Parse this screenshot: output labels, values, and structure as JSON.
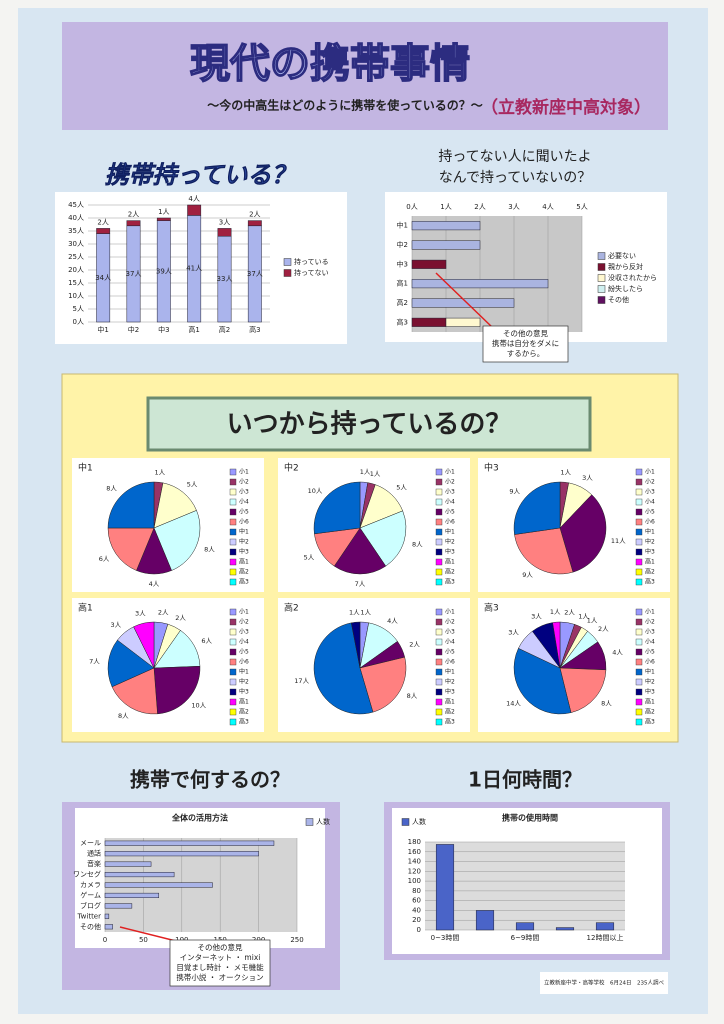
{
  "header": {
    "title": "現代の携帯事情",
    "subtitle": "～今の中高生はどのように携帯を使っているの？～",
    "target": "（立教新座中高対象）"
  },
  "sections": {
    "pies_title": "いつから持っているの？"
  },
  "footer": "立教新座中学・高等学校　6月24日　235人調べ",
  "chart_data": [
    {
      "type": "bar",
      "stacked": true,
      "title": "携帯持っている？",
      "categories": [
        "中1",
        "中2",
        "中3",
        "高1",
        "高2",
        "高3"
      ],
      "series": [
        {
          "name": "持っている",
          "color": "#aab4ec",
          "values": [
            34,
            37,
            39,
            41,
            33,
            37
          ],
          "value_labels": [
            "34人",
            "37人",
            "39人",
            "41人",
            "33人",
            "37人"
          ]
        },
        {
          "name": "持ってない",
          "color": "#a02040",
          "values": [
            2,
            2,
            1,
            4,
            3,
            2
          ],
          "value_labels": [
            "2人",
            "2人",
            "1人",
            "4人",
            "3人",
            "2人"
          ]
        }
      ],
      "ylim": [
        0,
        45
      ],
      "yticks": [
        {
          "value": 0,
          "label": "0人"
        },
        {
          "value": 5,
          "label": "5人"
        },
        {
          "value": 10,
          "label": "10人"
        },
        {
          "value": 15,
          "label": "15人"
        },
        {
          "value": 20,
          "label": "20人"
        },
        {
          "value": 25,
          "label": "25人"
        },
        {
          "value": 30,
          "label": "30人"
        },
        {
          "value": 35,
          "label": "35人"
        },
        {
          "value": 40,
          "label": "40人"
        },
        {
          "value": 45,
          "label": "45人"
        }
      ],
      "grid": true
    },
    {
      "type": "barh",
      "stacked": true,
      "title": [
        "持ってない人に聞いたよ",
        "なんで持っていないの？"
      ],
      "categories": [
        "中1",
        "中2",
        "中3",
        "高1",
        "高2",
        "高3"
      ],
      "series": [
        {
          "name": "必要ない",
          "color": "#aab4e0",
          "values": [
            2,
            2,
            0,
            4,
            3,
            0
          ]
        },
        {
          "name": "親から反対",
          "color": "#7a1030",
          "values": [
            0,
            0,
            1,
            0,
            0,
            1
          ]
        },
        {
          "name": "没収されたから",
          "color": "#fff8d0",
          "values": [
            0,
            0,
            0,
            0,
            0,
            1
          ]
        },
        {
          "name": "紛失したら",
          "color": "#d0f0f0",
          "values": [
            0,
            0,
            0,
            0,
            0,
            0
          ]
        },
        {
          "name": "その他",
          "color": "#601060",
          "values": [
            0,
            0,
            0,
            0,
            0,
            0
          ]
        }
      ],
      "xlim": [
        0,
        5
      ],
      "xticks": [
        {
          "value": 0,
          "label": "0人"
        },
        {
          "value": 1,
          "label": "1人"
        },
        {
          "value": 2,
          "label": "2人"
        },
        {
          "value": 3,
          "label": "3人"
        },
        {
          "value": 4,
          "label": "4人"
        },
        {
          "value": 5,
          "label": "5人"
        }
      ],
      "grid": true,
      "annotation": [
        "その他の意見",
        "携帯は自分をダメに",
        "するから。"
      ]
    },
    {
      "type": "pie",
      "title": "中1",
      "categories": [
        "小1",
        "小2",
        "小3",
        "小4",
        "小5",
        "小6",
        "中1",
        "中2",
        "中3",
        "高1",
        "高2",
        "高3"
      ],
      "colors": [
        "#9999ff",
        "#993366",
        "#ffffcc",
        "#ccffff",
        "#660066",
        "#ff8080",
        "#0066cc",
        "#ccccff",
        "#000080",
        "#ff00ff",
        "#ffff00",
        "#00ffff"
      ],
      "values": [
        0,
        1,
        5,
        8,
        4,
        6,
        8,
        0,
        0,
        0,
        0,
        0
      ],
      "value_labels": [
        null,
        "1人",
        "5人",
        "8人",
        "4人",
        "6人",
        "8人",
        null,
        null,
        null,
        null,
        null
      ]
    },
    {
      "type": "pie",
      "title": "中2",
      "categories": [
        "小1",
        "小2",
        "小3",
        "小4",
        "小5",
        "小6",
        "中1",
        "中2",
        "中3",
        "高1",
        "高2",
        "高3"
      ],
      "colors": [
        "#9999ff",
        "#993366",
        "#ffffcc",
        "#ccffff",
        "#660066",
        "#ff8080",
        "#0066cc",
        "#ccccff",
        "#000080",
        "#ff00ff",
        "#ffff00",
        "#00ffff"
      ],
      "values": [
        1,
        1,
        5,
        8,
        7,
        5,
        10,
        0,
        0,
        0,
        0,
        0
      ],
      "value_labels": [
        "1人",
        "1人",
        "5人",
        "8人",
        "7人",
        "5人",
        "10人",
        null,
        null,
        null,
        null,
        null
      ]
    },
    {
      "type": "pie",
      "title": "中3",
      "categories": [
        "小1",
        "小2",
        "小3",
        "小4",
        "小5",
        "小6",
        "中1",
        "中2",
        "中3",
        "高1",
        "高2",
        "高3"
      ],
      "colors": [
        "#9999ff",
        "#993366",
        "#ffffcc",
        "#ccffff",
        "#660066",
        "#ff8080",
        "#0066cc",
        "#ccccff",
        "#000080",
        "#ff00ff",
        "#ffff00",
        "#00ffff"
      ],
      "values": [
        0,
        1,
        3,
        0,
        11,
        9,
        9,
        0,
        0,
        0,
        0,
        0
      ],
      "value_labels": [
        null,
        "1人",
        "3人",
        null,
        "11人",
        "9人",
        "9人",
        null,
        null,
        null,
        null,
        null
      ]
    },
    {
      "type": "pie",
      "title": "高1",
      "categories": [
        "小1",
        "小2",
        "小3",
        "小4",
        "小5",
        "小6",
        "中1",
        "中2",
        "中3",
        "高1",
        "高2",
        "高3"
      ],
      "colors": [
        "#9999ff",
        "#993366",
        "#ffffcc",
        "#ccffff",
        "#660066",
        "#ff8080",
        "#0066cc",
        "#ccccff",
        "#000080",
        "#ff00ff",
        "#ffff00",
        "#00ffff"
      ],
      "values": [
        2,
        0,
        2,
        6,
        10,
        8,
        7,
        3,
        0,
        3,
        0,
        0
      ],
      "value_labels": [
        "2人",
        null,
        "2人",
        "6人",
        "10人",
        "8人",
        "7人",
        "3人",
        null,
        "3人",
        null,
        null
      ]
    },
    {
      "type": "pie",
      "title": "高2",
      "categories": [
        "小1",
        "小2",
        "小3",
        "小4",
        "小5",
        "小6",
        "中1",
        "中2",
        "中3",
        "高1",
        "高2",
        "高3"
      ],
      "colors": [
        "#9999ff",
        "#993366",
        "#ffffcc",
        "#ccffff",
        "#660066",
        "#ff8080",
        "#0066cc",
        "#ccccff",
        "#000080",
        "#ff00ff",
        "#ffff00",
        "#00ffff"
      ],
      "values": [
        1,
        0,
        0,
        4,
        2,
        8,
        17,
        0,
        1,
        0,
        0,
        0
      ],
      "value_labels": [
        "1人",
        null,
        null,
        "4人",
        "2人",
        "8人",
        "17人",
        null,
        "1人",
        null,
        null,
        null
      ]
    },
    {
      "type": "pie",
      "title": "高3",
      "categories": [
        "小1",
        "小2",
        "小3",
        "小4",
        "小5",
        "小6",
        "中1",
        "中2",
        "中3",
        "高1",
        "高2",
        "高3"
      ],
      "colors": [
        "#9999ff",
        "#993366",
        "#ffffcc",
        "#ccffff",
        "#660066",
        "#ff8080",
        "#0066cc",
        "#ccccff",
        "#000080",
        "#ff00ff",
        "#ffff00",
        "#00ffff"
      ],
      "values": [
        2,
        1,
        1,
        2,
        4,
        8,
        14,
        3,
        3,
        1,
        0,
        0
      ],
      "value_labels": [
        "2人",
        "1人",
        "1人",
        "2人",
        "4人",
        "8人",
        "14人",
        "3人",
        "3人",
        "1人",
        null,
        null
      ]
    },
    {
      "type": "barh",
      "title": "携帯で何するの？",
      "subtitle": "全体の活用方法",
      "categories": [
        "メール",
        "通話",
        "音楽",
        "ワンセグ",
        "カメラ",
        "ゲーム",
        "ブログ",
        "Twitter",
        "その他"
      ],
      "series": [
        {
          "name": "人数",
          "color": "#aab4e8",
          "values": [
            220,
            200,
            60,
            90,
            140,
            70,
            35,
            5,
            10
          ]
        }
      ],
      "xlim": [
        0,
        250
      ],
      "xticks": [
        0,
        50,
        100,
        150,
        200,
        250
      ],
      "grid": true,
      "annotation": [
        "その他の意見",
        "インターネット ・ mixi",
        "目覚まし時計 ・ メモ機能",
        "携帯小説 ・ オークション"
      ]
    },
    {
      "type": "bar",
      "title": "1日何時間？",
      "subtitle": "携帯の使用時間",
      "categories": [
        "0~3時間",
        null,
        "6~9時間",
        null,
        "12時間以上"
      ],
      "series": [
        {
          "name": "人数",
          "color": "#4a64c8",
          "values": [
            175,
            40,
            15,
            5,
            15
          ]
        }
      ],
      "ylim": [
        0,
        180
      ],
      "yticks": [
        0,
        20,
        40,
        60,
        80,
        100,
        120,
        140,
        160,
        180
      ],
      "grid": true
    }
  ]
}
